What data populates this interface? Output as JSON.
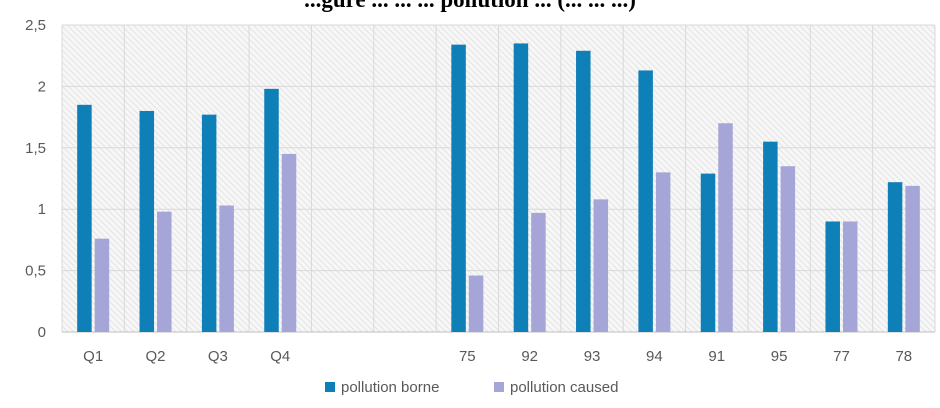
{
  "title": "...gure ... ... ... pollution ... (... ... ...)",
  "chart_data": {
    "type": "bar",
    "title": "",
    "xlabel": "",
    "ylabel": "",
    "categories": [
      "Q1",
      "Q2",
      "Q3",
      "Q4",
      "",
      "",
      "75",
      "92",
      "93",
      "94",
      "91",
      "95",
      "77",
      "78"
    ],
    "series": [
      {
        "name": "pollution borne",
        "color": "#0f7fb8",
        "values": [
          1.85,
          1.8,
          1.77,
          1.98,
          null,
          null,
          2.34,
          2.35,
          2.29,
          2.13,
          1.29,
          1.55,
          0.9,
          1.22
        ]
      },
      {
        "name": "pollution caused",
        "color": "#a5a5d8",
        "values": [
          0.76,
          0.98,
          1.03,
          1.45,
          null,
          null,
          0.46,
          0.97,
          1.08,
          1.3,
          1.7,
          1.35,
          0.9,
          1.19
        ]
      }
    ],
    "ylim": [
      0,
      2.5
    ],
    "yticks": [
      "0",
      "0,5",
      "1",
      "1,5",
      "2",
      "2,5"
    ],
    "grid": true,
    "legend_position": "bottom"
  }
}
